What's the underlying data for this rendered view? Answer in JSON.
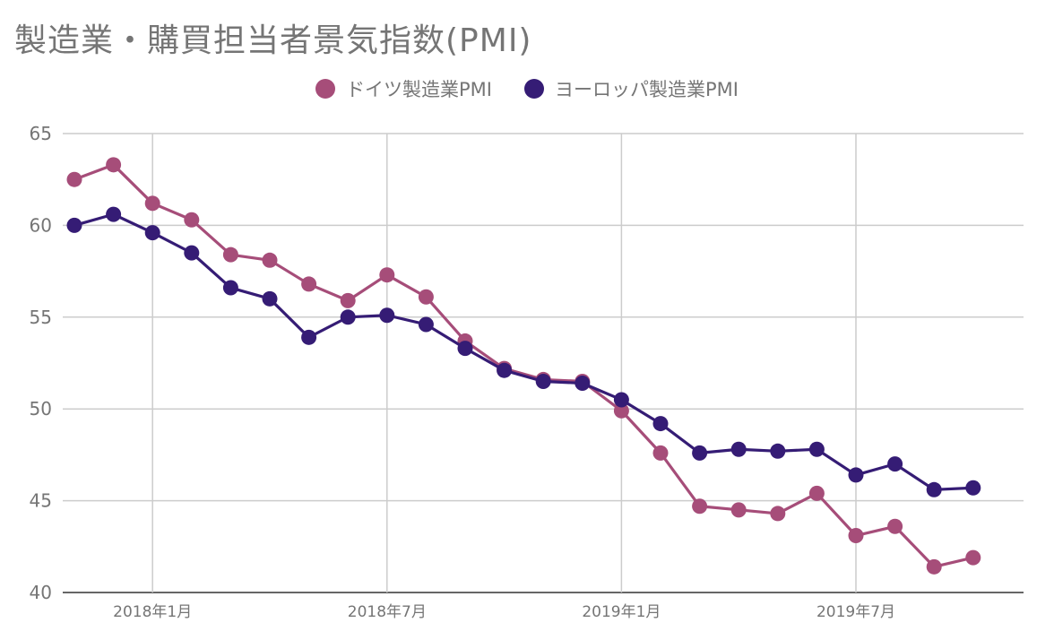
{
  "chart_data": {
    "type": "line",
    "title": "製造業・購買担当者景気指数(PMI)",
    "x_tick_labels": [
      "2018年1月",
      "2018年7月",
      "2019年1月",
      "2019年7月"
    ],
    "x_tick_positions": [
      "2018-01",
      "2018-07",
      "2019-01",
      "2019-07"
    ],
    "x": [
      "2017-11",
      "2017-12",
      "2018-01",
      "2018-02",
      "2018-03",
      "2018-04",
      "2018-05",
      "2018-06",
      "2018-07",
      "2018-08",
      "2018-09",
      "2018-10",
      "2018-11",
      "2018-12",
      "2019-01",
      "2019-02",
      "2019-03",
      "2019-04",
      "2019-05",
      "2019-06",
      "2019-07",
      "2019-08",
      "2019-09",
      "2019-10"
    ],
    "ylim": [
      40,
      65
    ],
    "y_ticks": [
      40,
      45,
      50,
      55,
      60,
      65
    ],
    "grid": true,
    "legend_position": "top",
    "series": [
      {
        "name": "ドイツ製造業PMI",
        "color": "#a64d79",
        "values": [
          62.5,
          63.3,
          61.2,
          60.3,
          58.4,
          58.1,
          56.8,
          55.9,
          57.3,
          56.1,
          53.7,
          52.2,
          51.6,
          51.5,
          49.9,
          47.6,
          44.7,
          44.5,
          44.3,
          45.4,
          43.1,
          43.6,
          41.4,
          41.9
        ]
      },
      {
        "name": "ヨーロッパ製造業PMI",
        "color": "#351c75",
        "values": [
          60.0,
          60.6,
          59.6,
          58.5,
          56.6,
          56.0,
          53.9,
          55.0,
          55.1,
          54.6,
          53.3,
          52.1,
          51.5,
          51.4,
          50.5,
          49.2,
          47.6,
          47.8,
          47.7,
          47.8,
          46.4,
          47.0,
          45.6,
          45.7
        ]
      }
    ]
  }
}
